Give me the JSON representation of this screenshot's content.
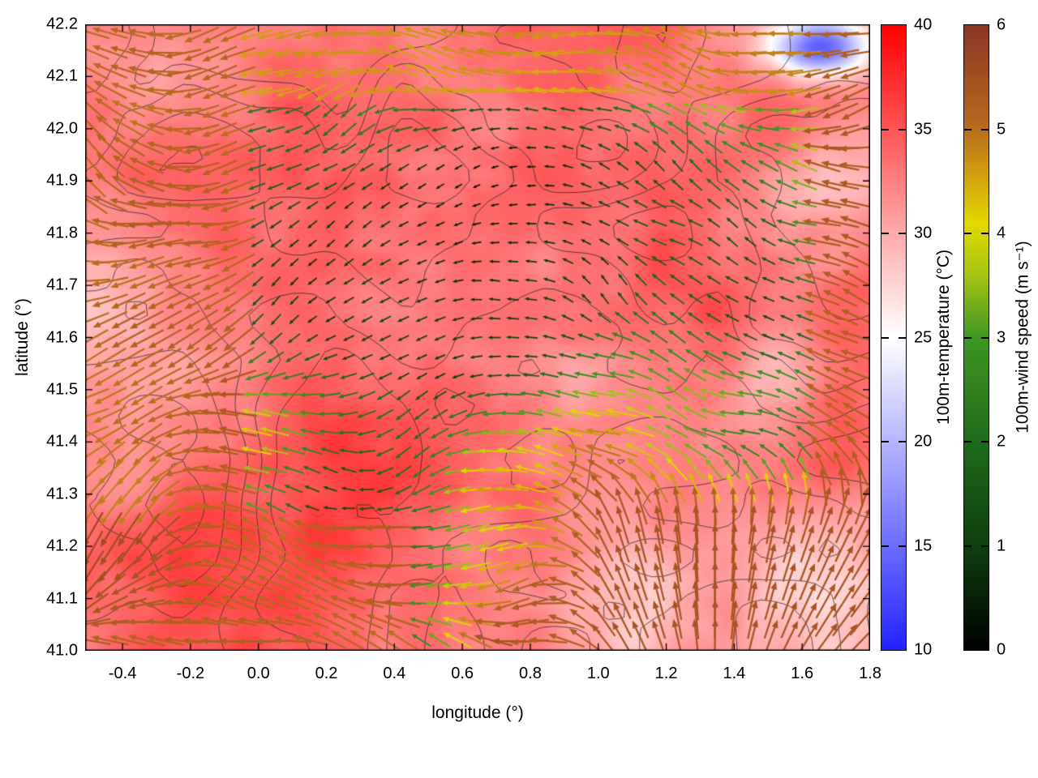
{
  "figure": {
    "background": "#ffffff"
  },
  "axes": {
    "xlabel": "longitude (°)",
    "ylabel": "latitude (°)",
    "xlim": [
      -0.51,
      1.8
    ],
    "ylim": [
      41.0,
      42.2
    ],
    "xticks": [
      {
        "v": -0.4,
        "label": "-0.4"
      },
      {
        "v": -0.2,
        "label": "-0.2"
      },
      {
        "v": 0.0,
        "label": "0.0"
      },
      {
        "v": 0.2,
        "label": "0.2"
      },
      {
        "v": 0.4,
        "label": "0.4"
      },
      {
        "v": 0.6,
        "label": "0.6"
      },
      {
        "v": 0.8,
        "label": "0.8"
      },
      {
        "v": 1.0,
        "label": "1.0"
      },
      {
        "v": 1.2,
        "label": "1.2"
      },
      {
        "v": 1.4,
        "label": "1.4"
      },
      {
        "v": 1.6,
        "label": "1.6"
      },
      {
        "v": 1.8,
        "label": "1.8"
      }
    ],
    "yticks": [
      {
        "v": 41.0,
        "label": "41.0"
      },
      {
        "v": 41.1,
        "label": "41.1"
      },
      {
        "v": 41.2,
        "label": "41.2"
      },
      {
        "v": 41.3,
        "label": "41.3"
      },
      {
        "v": 41.4,
        "label": "41.4"
      },
      {
        "v": 41.5,
        "label": "41.5"
      },
      {
        "v": 41.6,
        "label": "41.6"
      },
      {
        "v": 41.7,
        "label": "41.7"
      },
      {
        "v": 41.8,
        "label": "41.8"
      },
      {
        "v": 41.9,
        "label": "41.9"
      },
      {
        "v": 42.0,
        "label": "42.0"
      },
      {
        "v": 42.1,
        "label": "42.1"
      },
      {
        "v": 42.2,
        "label": "42.2"
      }
    ]
  },
  "colorbars": [
    {
      "id": "temperature",
      "label": "100m-temperature (°C)",
      "units": "°C",
      "min": 10,
      "max": 40,
      "ticks": [
        {
          "v": 10,
          "label": "10"
        },
        {
          "v": 15,
          "label": "15"
        },
        {
          "v": 20,
          "label": "20"
        },
        {
          "v": 25,
          "label": "25"
        },
        {
          "v": 30,
          "label": "30"
        },
        {
          "v": 35,
          "label": "35"
        },
        {
          "v": 40,
          "label": "40"
        }
      ],
      "stops": [
        {
          "v": 10,
          "c": "#2222ff"
        },
        {
          "v": 25,
          "c": "#ffffff"
        },
        {
          "v": 40,
          "c": "#ff0000"
        }
      ]
    },
    {
      "id": "wind-speed",
      "label": "100m-wind speed (m s⁻¹)",
      "units": "m s⁻¹",
      "min": 0,
      "max": 6,
      "ticks": [
        {
          "v": 0,
          "label": "0"
        },
        {
          "v": 1,
          "label": "1"
        },
        {
          "v": 2,
          "label": "2"
        },
        {
          "v": 3,
          "label": "3"
        },
        {
          "v": 4,
          "label": "4"
        },
        {
          "v": 5,
          "label": "5"
        },
        {
          "v": 6,
          "label": "6"
        }
      ],
      "stops": [
        {
          "v": 0.0,
          "c": "#000000"
        },
        {
          "v": 1.0,
          "c": "#0e400e"
        },
        {
          "v": 2.0,
          "c": "#1e6b1a"
        },
        {
          "v": 3.0,
          "c": "#3f9623"
        },
        {
          "v": 3.6,
          "c": "#a5c414"
        },
        {
          "v": 4.1,
          "c": "#e3d800"
        },
        {
          "v": 4.6,
          "c": "#cf9a12"
        },
        {
          "v": 5.1,
          "c": "#b4641e"
        },
        {
          "v": 6.0,
          "c": "#8c3526"
        }
      ]
    }
  ],
  "chart_data": {
    "type": "heatmap",
    "title": "",
    "x": {
      "label": "longitude (°)",
      "range": [
        -0.51,
        1.8
      ],
      "units": "degrees"
    },
    "y": {
      "label": "latitude (°)",
      "range": [
        41.0,
        42.2
      ],
      "units": "degrees"
    },
    "layers": [
      {
        "name": "temperature-shading",
        "variable": "100m-temperature",
        "units": "°C",
        "scale_range": [
          10,
          40
        ],
        "observed_range": [
          14,
          39
        ],
        "palette": "blue-white-red",
        "notes": "mostly 28-37 °C (pink/red); white patches near (0.7,41.1), (1.4,41.5), (1.6,41.85); cold blue patch near (1.55,42.15)"
      },
      {
        "name": "contour-lines",
        "style": "thin dark-gray field contours over whole domain"
      },
      {
        "name": "wind-vectors",
        "variable": "100m-wind speed",
        "units": "m s⁻¹",
        "scale_range": [
          0,
          6
        ],
        "palette": "black-darkgreen-green-yellow-orange-darkred",
        "arrow_style": "length and color proportional to speed; long dark-red ~5-6 m/s arrows at domain edges and lower-left, short dark-green ~1-2 m/s arrows in central region (0.2-1.1 lon, 41.5-41.9 lat), yellow/orange ring ~3.5-4.5 m/s between, radial dark-red fan in lower-right"
      }
    ],
    "field_render": {
      "seed": 7,
      "temp_grid": [
        242,
        193
      ],
      "contour_grid": [
        72,
        56
      ],
      "contour_levels": [
        0.36,
        0.44,
        0.52,
        0.6,
        0.68
      ],
      "arrow_grid": {
        "cols": 43,
        "rows": 33
      }
    }
  }
}
